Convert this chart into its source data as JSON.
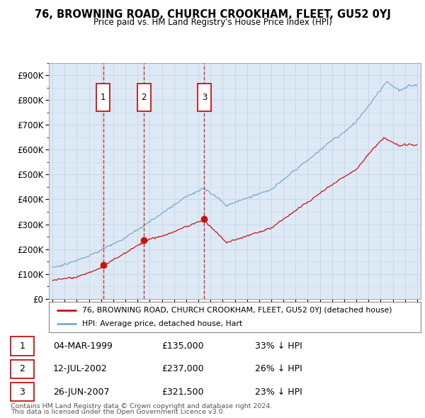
{
  "title": "76, BROWNING ROAD, CHURCH CROOKHAM, FLEET, GU52 0YJ",
  "subtitle": "Price paid vs. HM Land Registry's House Price Index (HPI)",
  "ylim": [
    0,
    950000
  ],
  "yticks": [
    0,
    100000,
    200000,
    300000,
    400000,
    500000,
    600000,
    700000,
    800000,
    900000
  ],
  "ytick_labels": [
    "£0",
    "£100K",
    "£200K",
    "£300K",
    "£400K",
    "£500K",
    "£600K",
    "£700K",
    "£800K",
    "£900K"
  ],
  "xlim_start": 1994.7,
  "xlim_end": 2025.3,
  "hpi_color": "#7aaad0",
  "price_color": "#cc1111",
  "grid_color": "#c8d8ea",
  "background_color": "#ddeaf5",
  "sale_dates": [
    1999.17,
    2002.53,
    2007.49
  ],
  "sale_prices": [
    135000,
    237000,
    321500
  ],
  "sale_labels": [
    "1",
    "2",
    "3"
  ],
  "sale_pct": [
    "33% ↓ HPI",
    "26% ↓ HPI",
    "23% ↓ HPI"
  ],
  "sale_date_strs": [
    "04-MAR-1999",
    "12-JUL-2002",
    "26-JUN-2007"
  ],
  "sale_price_strs": [
    "£135,000",
    "£237,000",
    "£321,500"
  ],
  "legend_property": "76, BROWNING ROAD, CHURCH CROOKHAM, FLEET, GU52 0YJ (detached house)",
  "legend_hpi": "HPI: Average price, detached house, Hart",
  "footer_line1": "Contains HM Land Registry data © Crown copyright and database right 2024.",
  "footer_line2": "This data is licensed under the Open Government Licence v3.0."
}
